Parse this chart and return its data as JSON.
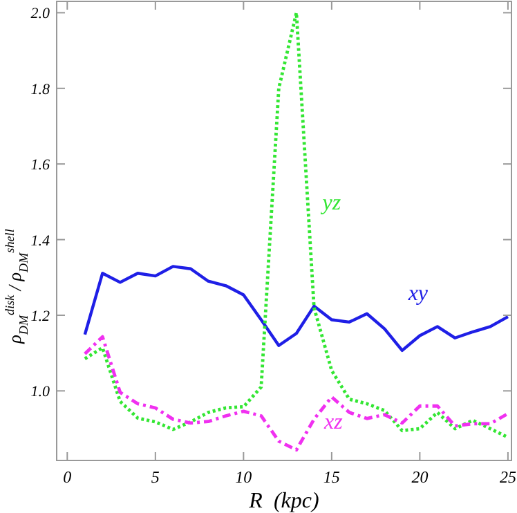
{
  "chart_data": {
    "type": "line",
    "xlabel": "R  (kpc)",
    "ylabel": "ρ$_{DM}$$^{disk}$ / ρ$_{DM}$$^{shell}$",
    "x": [
      1,
      2,
      3,
      4,
      5,
      6,
      7,
      8,
      9,
      10,
      11,
      12,
      13,
      14,
      15,
      16,
      17,
      18,
      19,
      20,
      21,
      22,
      23,
      24,
      25
    ],
    "xlim": [
      -0.6,
      25.2
    ],
    "xticks": [
      0,
      5,
      10,
      15,
      20,
      25
    ],
    "ylim": [
      0.816,
      2.03
    ],
    "yticks": [
      {
        "value": 1,
        "label": "1.0"
      },
      {
        "value": 1.2,
        "label": "1.2"
      },
      {
        "value": 1.4,
        "label": "1.4"
      },
      {
        "value": 1.6,
        "label": "1.6"
      },
      {
        "value": 1.8,
        "label": "1.8"
      },
      {
        "value": 2,
        "label": "2.0"
      }
    ],
    "marker": "none",
    "series": [
      {
        "name": "xy",
        "color": "#1f1fe6",
        "line_style": "solid",
        "values": [
          1.149,
          1.311,
          1.287,
          1.311,
          1.304,
          1.329,
          1.323,
          1.29,
          1.278,
          1.254,
          1.188,
          1.12,
          1.152,
          1.224,
          1.188,
          1.182,
          1.204,
          1.164,
          1.107,
          1.146,
          1.17,
          1.14,
          1.156,
          1.17,
          1.196
        ]
      },
      {
        "name": "yz",
        "color": "#33e633",
        "line_style": "dotted",
        "values": [
          1.085,
          1.114,
          0.972,
          0.928,
          0.918,
          0.898,
          0.918,
          0.943,
          0.955,
          0.958,
          1.01,
          1.8,
          2.0,
          1.22,
          1.054,
          0.978,
          0.966,
          0.948,
          0.895,
          0.9,
          0.943,
          0.9,
          0.922,
          0.9,
          0.877
        ]
      },
      {
        "name": "xz",
        "color": "#f030f0",
        "line_style": "dashed",
        "values": [
          1.098,
          1.143,
          0.996,
          0.966,
          0.955,
          0.925,
          0.915,
          0.919,
          0.934,
          0.946,
          0.934,
          0.867,
          0.844,
          0.925,
          0.984,
          0.943,
          0.927,
          0.937,
          0.915,
          0.96,
          0.96,
          0.907,
          0.913,
          0.913,
          0.94
        ]
      }
    ]
  }
}
